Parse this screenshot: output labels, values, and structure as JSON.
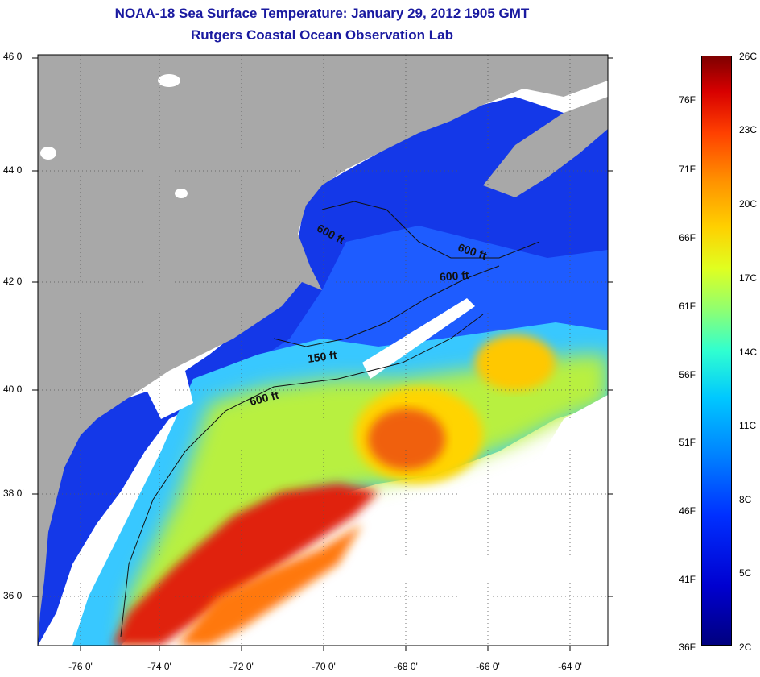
{
  "title": "NOAA-18 Sea Surface Temperature:  January 29, 2012 1905 GMT",
  "subtitle": "Rutgers Coastal Ocean Observation Lab",
  "latitude_labels": [
    "46 0'",
    "44 0'",
    "42 0'",
    "40 0'",
    "38 0'",
    "36 0'"
  ],
  "longitude_labels": [
    "-76 0'",
    "-74 0'",
    "-72 0'",
    "-70 0'",
    "-68 0'",
    "-66 0'",
    "-64 0'"
  ],
  "contour_labels": [
    "600 ft",
    "600 ft",
    "600 ft",
    "150 ft",
    "600 ft"
  ],
  "colorbar": {
    "fahrenheit_labels": [
      "76F",
      "71F",
      "66F",
      "61F",
      "56F",
      "51F",
      "46F",
      "41F",
      "36F"
    ],
    "celsius_labels": [
      "26C",
      "23C",
      "20C",
      "17C",
      "14C",
      "11C",
      "8C",
      "5C",
      "2C"
    ],
    "range_c": [
      2,
      26
    ]
  },
  "colors": {
    "land": "#a8a8a8",
    "cloud": "#ffffff",
    "title": "#1a1aa0"
  }
}
